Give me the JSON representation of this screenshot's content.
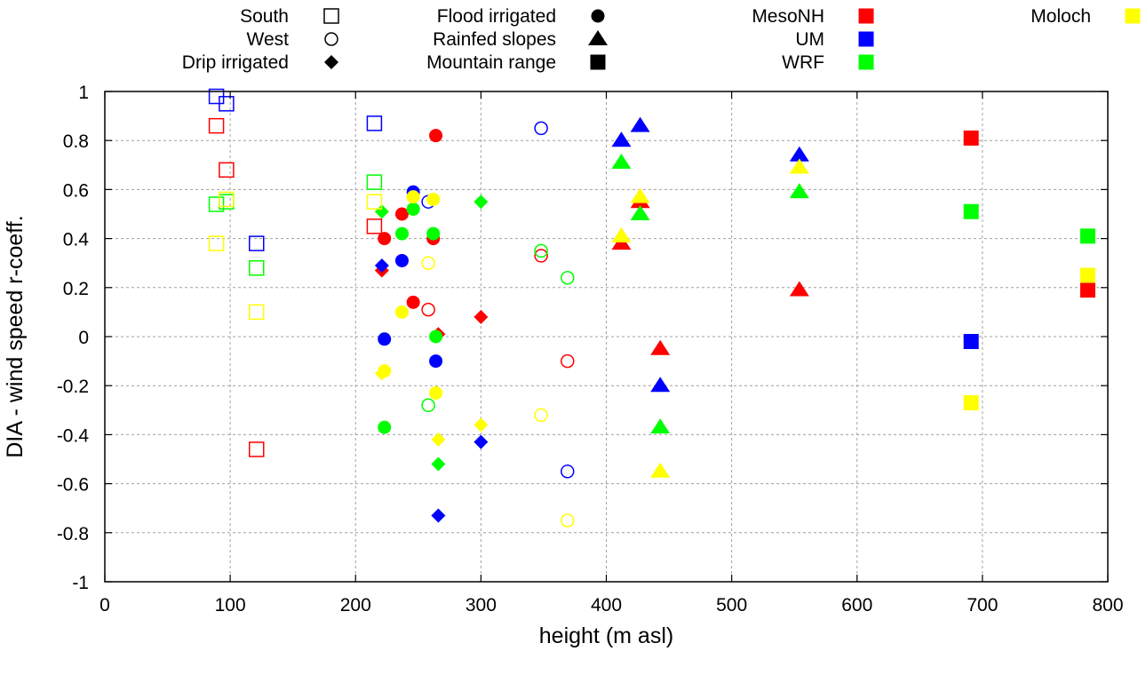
{
  "chart_data": {
    "type": "scatter",
    "title": "",
    "xlabel": "height (m asl)",
    "ylabel": "DIA - wind speed r-coeff.",
    "xlim": [
      0,
      800
    ],
    "ylim": [
      -1,
      1
    ],
    "xticks": [
      0,
      100,
      200,
      300,
      400,
      500,
      600,
      700,
      800
    ],
    "yticks": [
      -1,
      -0.8,
      -0.6,
      -0.4,
      -0.2,
      0,
      0.2,
      0.4,
      0.6,
      0.8,
      1
    ],
    "ytick_labels": [
      "-1",
      "-0.8",
      "-0.6",
      "-0.4",
      "-0.2",
      "0",
      "0.2",
      "0.4",
      "0.6",
      "0.8",
      "1"
    ],
    "grid": true,
    "legend_placement": "top (outside plot)",
    "shape_legend": [
      {
        "label": "South",
        "marker": "open-square"
      },
      {
        "label": "West",
        "marker": "open-circle"
      },
      {
        "label": "Drip irrigated",
        "marker": "diamond"
      },
      {
        "label": "Flood irrigated",
        "marker": "circle"
      },
      {
        "label": "Rainfed slopes",
        "marker": "triangle"
      },
      {
        "label": "Mountain range",
        "marker": "square"
      }
    ],
    "model_legend": [
      {
        "label": "MesoNH",
        "color": "#ff0000"
      },
      {
        "label": "UM",
        "color": "#0000ff"
      },
      {
        "label": "WRF",
        "color": "#00ff00"
      },
      {
        "label": "Moloch",
        "color": "#ffff00"
      }
    ],
    "series": [
      {
        "name": "MesoNH",
        "color": "#ff0000",
        "points": [
          {
            "x": 89,
            "y": 0.86,
            "marker": "open-square"
          },
          {
            "x": 97,
            "y": 0.68,
            "marker": "open-square"
          },
          {
            "x": 121,
            "y": -0.46,
            "marker": "open-square"
          },
          {
            "x": 215,
            "y": 0.45,
            "marker": "open-square"
          },
          {
            "x": 258,
            "y": 0.11,
            "marker": "open-circle"
          },
          {
            "x": 348,
            "y": 0.33,
            "marker": "open-circle"
          },
          {
            "x": 369,
            "y": -0.1,
            "marker": "open-circle"
          },
          {
            "x": 221,
            "y": 0.27,
            "marker": "diamond"
          },
          {
            "x": 266,
            "y": 0.01,
            "marker": "diamond"
          },
          {
            "x": 300,
            "y": 0.08,
            "marker": "diamond"
          },
          {
            "x": 264,
            "y": 0.82,
            "marker": "circle"
          },
          {
            "x": 223,
            "y": 0.4,
            "marker": "circle"
          },
          {
            "x": 237,
            "y": 0.5,
            "marker": "circle"
          },
          {
            "x": 262,
            "y": 0.4,
            "marker": "circle"
          },
          {
            "x": 246,
            "y": 0.14,
            "marker": "circle"
          },
          {
            "x": 412,
            "y": 0.38,
            "marker": "triangle"
          },
          {
            "x": 427,
            "y": 0.55,
            "marker": "triangle"
          },
          {
            "x": 443,
            "y": -0.05,
            "marker": "triangle"
          },
          {
            "x": 554,
            "y": 0.19,
            "marker": "triangle"
          },
          {
            "x": 691,
            "y": 0.81,
            "marker": "square"
          },
          {
            "x": 784,
            "y": 0.19,
            "marker": "square"
          }
        ]
      },
      {
        "name": "UM",
        "color": "#0000ff",
        "points": [
          {
            "x": 89,
            "y": 0.98,
            "marker": "open-square"
          },
          {
            "x": 97,
            "y": 0.95,
            "marker": "open-square"
          },
          {
            "x": 121,
            "y": 0.38,
            "marker": "open-square"
          },
          {
            "x": 215,
            "y": 0.87,
            "marker": "open-square"
          },
          {
            "x": 258,
            "y": 0.55,
            "marker": "open-circle"
          },
          {
            "x": 348,
            "y": 0.85,
            "marker": "open-circle"
          },
          {
            "x": 369,
            "y": -0.55,
            "marker": "open-circle"
          },
          {
            "x": 221,
            "y": 0.29,
            "marker": "diamond"
          },
          {
            "x": 266,
            "y": -0.73,
            "marker": "diamond"
          },
          {
            "x": 300,
            "y": -0.43,
            "marker": "diamond"
          },
          {
            "x": 246,
            "y": 0.59,
            "marker": "circle"
          },
          {
            "x": 237,
            "y": 0.31,
            "marker": "circle"
          },
          {
            "x": 223,
            "y": -0.01,
            "marker": "circle"
          },
          {
            "x": 264,
            "y": -0.1,
            "marker": "circle"
          },
          {
            "x": 412,
            "y": 0.8,
            "marker": "triangle"
          },
          {
            "x": 427,
            "y": 0.86,
            "marker": "triangle"
          },
          {
            "x": 443,
            "y": -0.2,
            "marker": "triangle"
          },
          {
            "x": 554,
            "y": 0.74,
            "marker": "triangle"
          },
          {
            "x": 691,
            "y": -0.02,
            "marker": "square"
          }
        ]
      },
      {
        "name": "WRF",
        "color": "#00ff00",
        "points": [
          {
            "x": 89,
            "y": 0.54,
            "marker": "open-square"
          },
          {
            "x": 97,
            "y": 0.55,
            "marker": "open-square"
          },
          {
            "x": 121,
            "y": 0.28,
            "marker": "open-square"
          },
          {
            "x": 215,
            "y": 0.63,
            "marker": "open-square"
          },
          {
            "x": 258,
            "y": -0.28,
            "marker": "open-circle"
          },
          {
            "x": 348,
            "y": 0.35,
            "marker": "open-circle"
          },
          {
            "x": 369,
            "y": 0.24,
            "marker": "open-circle"
          },
          {
            "x": 221,
            "y": 0.51,
            "marker": "diamond"
          },
          {
            "x": 266,
            "y": -0.52,
            "marker": "diamond"
          },
          {
            "x": 300,
            "y": 0.55,
            "marker": "diamond"
          },
          {
            "x": 246,
            "y": 0.52,
            "marker": "circle"
          },
          {
            "x": 237,
            "y": 0.42,
            "marker": "circle"
          },
          {
            "x": 262,
            "y": 0.42,
            "marker": "circle"
          },
          {
            "x": 264,
            "y": 0.0,
            "marker": "circle"
          },
          {
            "x": 223,
            "y": -0.37,
            "marker": "circle"
          },
          {
            "x": 412,
            "y": 0.71,
            "marker": "triangle"
          },
          {
            "x": 427,
            "y": 0.5,
            "marker": "triangle"
          },
          {
            "x": 443,
            "y": -0.37,
            "marker": "triangle"
          },
          {
            "x": 554,
            "y": 0.59,
            "marker": "triangle"
          },
          {
            "x": 691,
            "y": 0.51,
            "marker": "square"
          },
          {
            "x": 784,
            "y": 0.41,
            "marker": "square"
          }
        ]
      },
      {
        "name": "Moloch",
        "color": "#ffff00",
        "points": [
          {
            "x": 89,
            "y": 0.38,
            "marker": "open-square"
          },
          {
            "x": 97,
            "y": 0.56,
            "marker": "open-square"
          },
          {
            "x": 121,
            "y": 0.1,
            "marker": "open-square"
          },
          {
            "x": 215,
            "y": 0.55,
            "marker": "open-square"
          },
          {
            "x": 258,
            "y": 0.3,
            "marker": "open-circle"
          },
          {
            "x": 348,
            "y": -0.32,
            "marker": "open-circle"
          },
          {
            "x": 369,
            "y": -0.75,
            "marker": "open-circle"
          },
          {
            "x": 221,
            "y": -0.15,
            "marker": "diamond"
          },
          {
            "x": 266,
            "y": -0.42,
            "marker": "diamond"
          },
          {
            "x": 300,
            "y": -0.36,
            "marker": "diamond"
          },
          {
            "x": 246,
            "y": 0.57,
            "marker": "circle"
          },
          {
            "x": 262,
            "y": 0.56,
            "marker": "circle"
          },
          {
            "x": 237,
            "y": 0.1,
            "marker": "circle"
          },
          {
            "x": 223,
            "y": -0.14,
            "marker": "circle"
          },
          {
            "x": 264,
            "y": -0.23,
            "marker": "circle"
          },
          {
            "x": 412,
            "y": 0.41,
            "marker": "triangle"
          },
          {
            "x": 427,
            "y": 0.57,
            "marker": "triangle"
          },
          {
            "x": 443,
            "y": -0.55,
            "marker": "triangle"
          },
          {
            "x": 554,
            "y": 0.69,
            "marker": "triangle"
          },
          {
            "x": 691,
            "y": -0.27,
            "marker": "square"
          },
          {
            "x": 784,
            "y": 0.25,
            "marker": "square"
          }
        ]
      }
    ]
  }
}
